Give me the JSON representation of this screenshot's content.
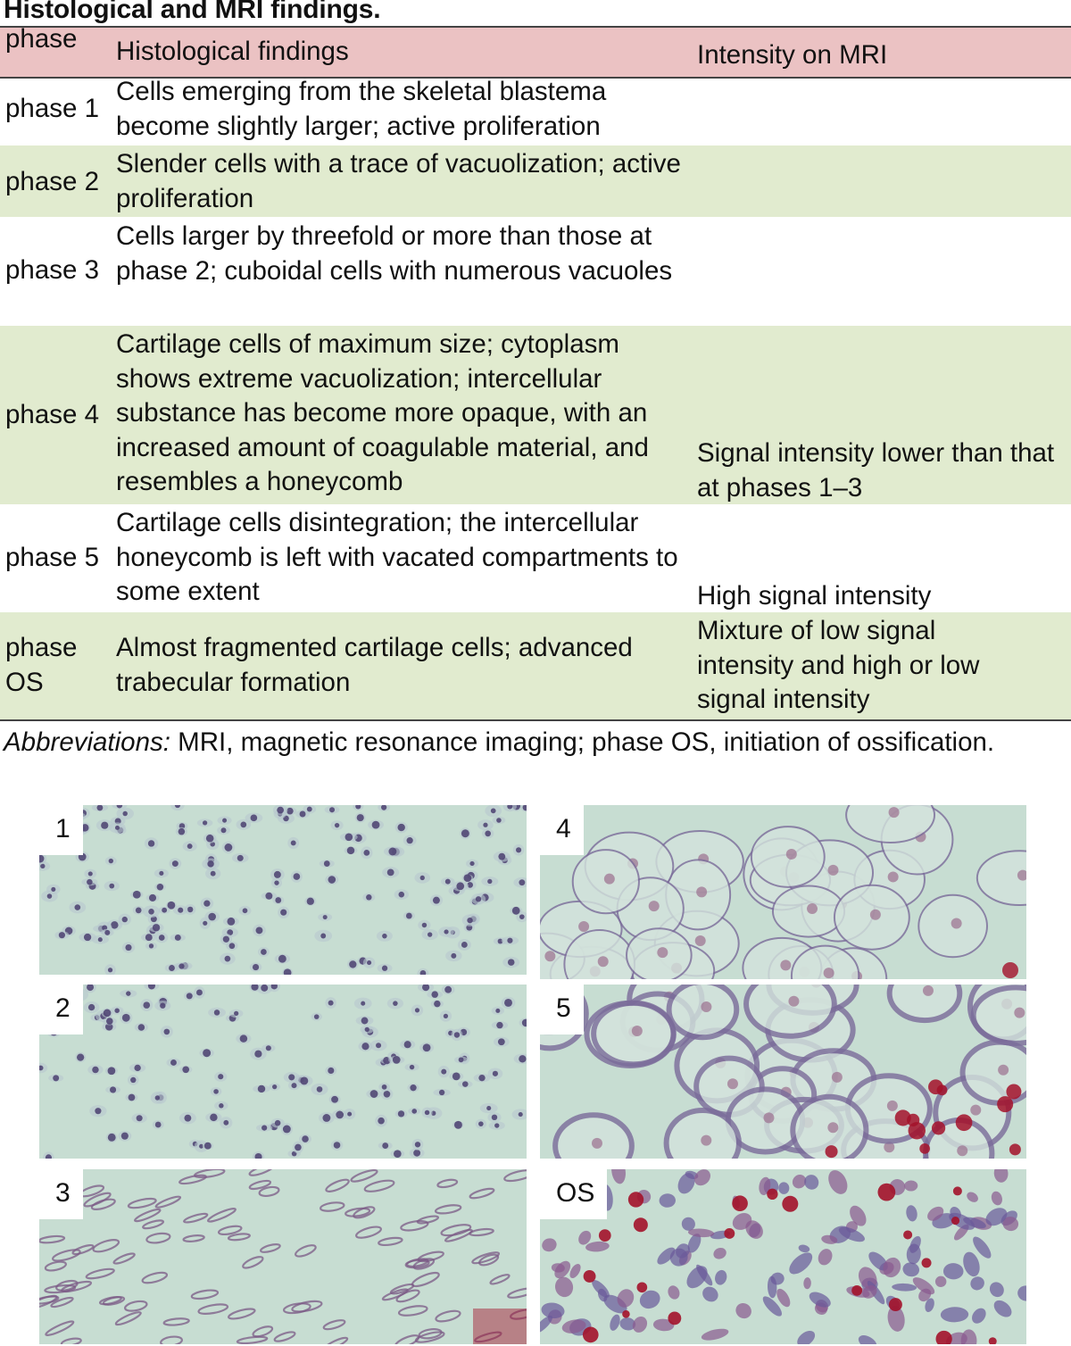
{
  "title": "Histological and MRI findings.",
  "table": {
    "headers": {
      "phase": "phase",
      "histology": "Histological findings",
      "mri": "Intensity on MRI"
    },
    "rows": [
      {
        "phase": "phase 1",
        "histology": "Cells emerging from the skeletal blastema become slightly larger; active proliferation",
        "mri": ""
      },
      {
        "phase": "phase 2",
        "histology": "Slender cells with a trace of vacuolization; active proliferation",
        "mri": ""
      },
      {
        "phase": "phase 3",
        "histology": "Cells larger by threefold or more than those at phase 2; cuboidal cells with numerous vacuoles",
        "mri": ""
      },
      {
        "phase": "phase 4",
        "histology": "Cartilage cells of maximum size; cytoplasm shows extreme vacuolization; intercellular substance has become more opaque, with an increased amount of coagulable material, and resembles a honeycomb",
        "mri": "Signal intensity lower than that at phases 1–3"
      },
      {
        "phase": "phase 5",
        "histology": "Cartilage cells disintegration; the intercellular honeycomb is left with vacated compartments to some extent",
        "mri": "High signal intensity"
      },
      {
        "phase": "phase OS",
        "histology": "Almost fragmented cartilage cells; advanced trabecular formation",
        "mri": "Mixture of low signal intensity and high or low signal intensity"
      }
    ]
  },
  "footnote": {
    "label": "Abbreviations:",
    "text": " MRI, magnetic resonance imaging; phase OS, initiation of ossification."
  },
  "panels": [
    {
      "label": "1"
    },
    {
      "label": "2"
    },
    {
      "label": "3"
    },
    {
      "label": "4"
    },
    {
      "label": "5"
    },
    {
      "label": "OS"
    }
  ],
  "colors": {
    "header_bg": "#ebc2c3",
    "stripe_bg": "#e1ebcf",
    "tissue_bg": "#c7ddd2",
    "nucleus": "#5a4a78",
    "stain_red": "#a3122a"
  }
}
